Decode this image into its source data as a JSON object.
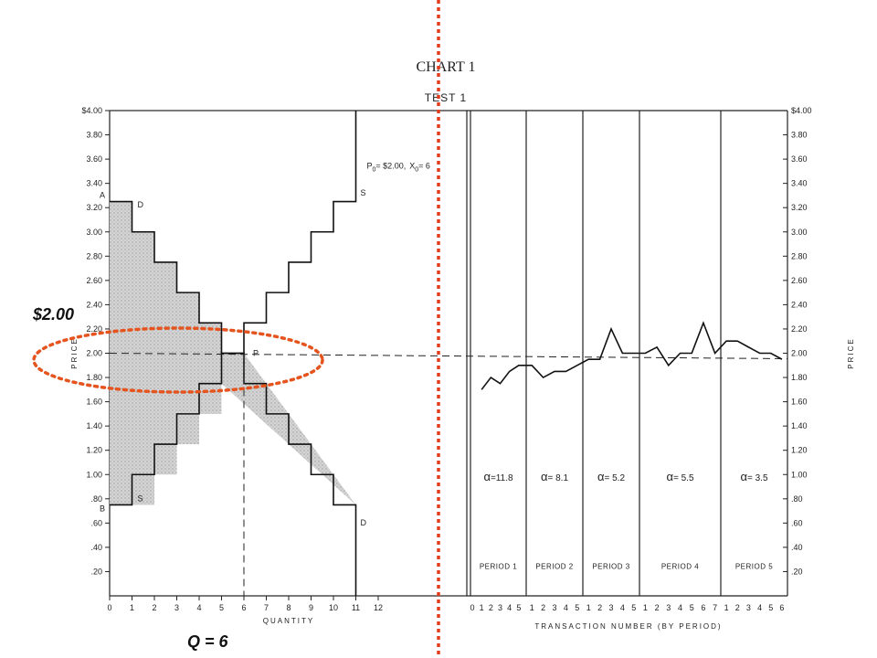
{
  "chart_data": {
    "type": "line",
    "title": "CHART 1",
    "subtitle": "TEST 1",
    "ylabel": "PRICE",
    "ylim": [
      0,
      4.0
    ],
    "yticks": [
      "$4.00",
      "3.80",
      "3.60",
      "3.40",
      "3.20",
      "3.00",
      "2.80",
      "2.60",
      "2.40",
      "2.20",
      "2.00",
      "1.80",
      "1.60",
      "1.40",
      "1.20",
      "1.00",
      ".80",
      ".60",
      ".40",
      ".20"
    ],
    "right_yticks": [
      "$4.00",
      "3.80",
      "3.60",
      "3.40",
      "3.20",
      "3.00",
      "2.80",
      "2.60",
      "2.40",
      "2.20",
      "2.00",
      "1.80",
      "1.60",
      "1.40",
      "1.20",
      "1.00",
      ".80",
      ".60",
      ".40",
      ".20"
    ],
    "quantity_panel": {
      "xlabel": "QUANTITY",
      "xticks": [
        "0",
        "1",
        "2",
        "3",
        "4",
        "5",
        "6",
        "7",
        "8",
        "9",
        "10",
        "11",
        "12"
      ],
      "demand_steps": [
        {
          "q": 1,
          "p": 3.25
        },
        {
          "q": 2,
          "p": 3.0
        },
        {
          "q": 3,
          "p": 2.75
        },
        {
          "q": 4,
          "p": 2.5
        },
        {
          "q": 5,
          "p": 2.25
        },
        {
          "q": 6,
          "p": 2.0
        },
        {
          "q": 7,
          "p": 1.75
        },
        {
          "q": 8,
          "p": 1.5
        },
        {
          "q": 9,
          "p": 1.25
        },
        {
          "q": 10,
          "p": 1.0
        },
        {
          "q": 11,
          "p": 0.75
        }
      ],
      "supply_steps": [
        {
          "q": 1,
          "p": 0.75
        },
        {
          "q": 2,
          "p": 1.0
        },
        {
          "q": 3,
          "p": 1.25
        },
        {
          "q": 4,
          "p": 1.5
        },
        {
          "q": 5,
          "p": 1.75
        },
        {
          "q": 6,
          "p": 2.0
        },
        {
          "q": 7,
          "p": 2.25
        },
        {
          "q": 8,
          "p": 2.5
        },
        {
          "q": 9,
          "p": 2.75
        },
        {
          "q": 10,
          "p": 3.0
        },
        {
          "q": 11,
          "p": 3.25
        }
      ],
      "equilibrium": {
        "price": 2.0,
        "quantity": 6
      },
      "labels": {
        "A": "A",
        "B": "B",
        "D_top": "D",
        "S_bottom": "S",
        "S_top": "S",
        "D_bottom": "D",
        "P": "P",
        "eq_p": "P",
        "eq_p_sub": "0",
        "eq_p_value": "= $2.00,",
        "eq_x": "X",
        "eq_x_sub": "0",
        "eq_x_value": "= 6"
      }
    },
    "transaction_panel": {
      "xlabel": "TRANSACTION NUMBER (BY PERIOD)",
      "periods": [
        {
          "name": "PERIOD 1",
          "alpha": "=11.8",
          "ticks": [
            "0",
            "1",
            "2",
            "3",
            "4",
            "5"
          ],
          "prices": [
            1.7,
            1.8,
            1.75,
            1.85,
            1.9
          ]
        },
        {
          "name": "PERIOD 2",
          "alpha": "= 8.1",
          "ticks": [
            "1",
            "2",
            "3",
            "4",
            "5"
          ],
          "prices": [
            1.9,
            1.8,
            1.85,
            1.85,
            1.9
          ]
        },
        {
          "name": "PERIOD 3",
          "alpha": "= 5.2",
          "ticks": [
            "1",
            "2",
            "3",
            "4",
            "5"
          ],
          "prices": [
            1.95,
            1.95,
            2.2,
            2.0,
            2.0
          ]
        },
        {
          "name": "PERIOD 4",
          "alpha": "= 5.5",
          "ticks": [
            "1",
            "2",
            "3",
            "4",
            "5",
            "6",
            "7"
          ],
          "prices": [
            2.0,
            2.05,
            1.9,
            2.0,
            2.0,
            2.25,
            2.0
          ]
        },
        {
          "name": "PERIOD 5",
          "alpha": "= 3.5",
          "ticks": [
            "1",
            "2",
            "3",
            "4",
            "5",
            "6"
          ],
          "prices": [
            2.1,
            2.1,
            2.05,
            2.0,
            2.0,
            1.95
          ]
        }
      ]
    },
    "annotations": {
      "price_label": "$2.00",
      "quantity_label": "Q = 6"
    }
  }
}
